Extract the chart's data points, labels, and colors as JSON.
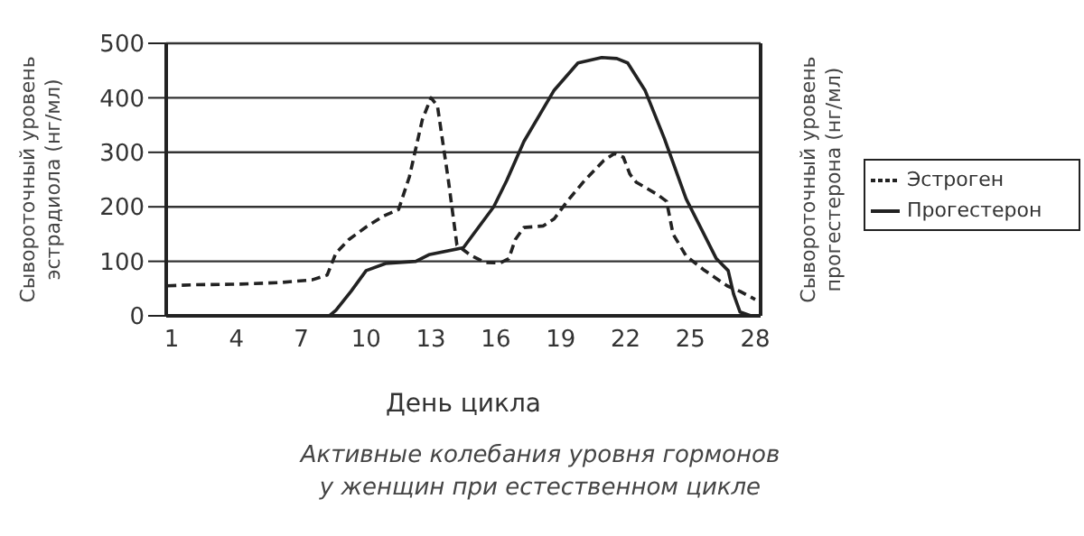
{
  "chart_data": {
    "type": "line",
    "xlabel": "День цикла",
    "ylabel": "Сывороточный уровень эстрадиола (нг/мл)",
    "y2label": "Сывороточный уровень прогестерона (нг/мл)",
    "annotations": [
      "Активные колебания уровня гормонов у женщин при естественном цикле"
    ],
    "xlim": [
      0.75,
      28.25
    ],
    "xticks": [
      1,
      4,
      7,
      10,
      13,
      16,
      19,
      22,
      25,
      28
    ],
    "ylim": [
      0,
      500
    ],
    "yticks": [
      0,
      100,
      200,
      300,
      400,
      500
    ],
    "grid": "y",
    "legend": "right",
    "marker": "none",
    "series": [
      {
        "name": "Эстроген",
        "color": "#222222",
        "line_style": "dashed",
        "x": [
          0.8,
          2,
          4,
          6,
          7.5,
          8.2,
          8.6,
          9.2,
          10,
          10.8,
          11.5,
          12,
          12.6,
          13,
          13.3,
          13.8,
          14.2,
          14.8,
          15.5,
          16.2,
          16.6,
          16.9,
          17.3,
          18.2,
          18.7,
          19.3,
          20.1,
          21,
          21.5,
          21.9,
          22.2,
          22.5,
          23.5,
          23.9,
          24.2,
          24.8,
          25.6,
          26.7,
          27.3,
          28
        ],
        "values": [
          55,
          57,
          58,
          61,
          66,
          75,
          115,
          140,
          163,
          183,
          195,
          255,
          360,
          400,
          385,
          250,
          130,
          112,
          98,
          97,
          105,
          140,
          162,
          165,
          178,
          210,
          248,
          285,
          298,
          291,
          260,
          245,
          222,
          210,
          150,
          110,
          85,
          55,
          45,
          30
        ]
      },
      {
        "name": "Прогестерон",
        "color": "#222222",
        "line_style": "solid",
        "x": [
          8.3,
          8.6,
          9.3,
          10,
          10.9,
          12.3,
          12.9,
          14.5,
          15.9,
          16.5,
          17.3,
          18.7,
          19.8,
          20.9,
          21.6,
          22.1,
          22.9,
          23.8,
          24.8,
          26.2,
          26.75,
          27,
          27.3,
          27.8
        ],
        "values": [
          0,
          10,
          45,
          83,
          96,
          100,
          112,
          125,
          200,
          248,
          320,
          414,
          464,
          474,
          472,
          464,
          414,
          325,
          215,
          105,
          83,
          40,
          7,
          0
        ]
      }
    ]
  }
}
